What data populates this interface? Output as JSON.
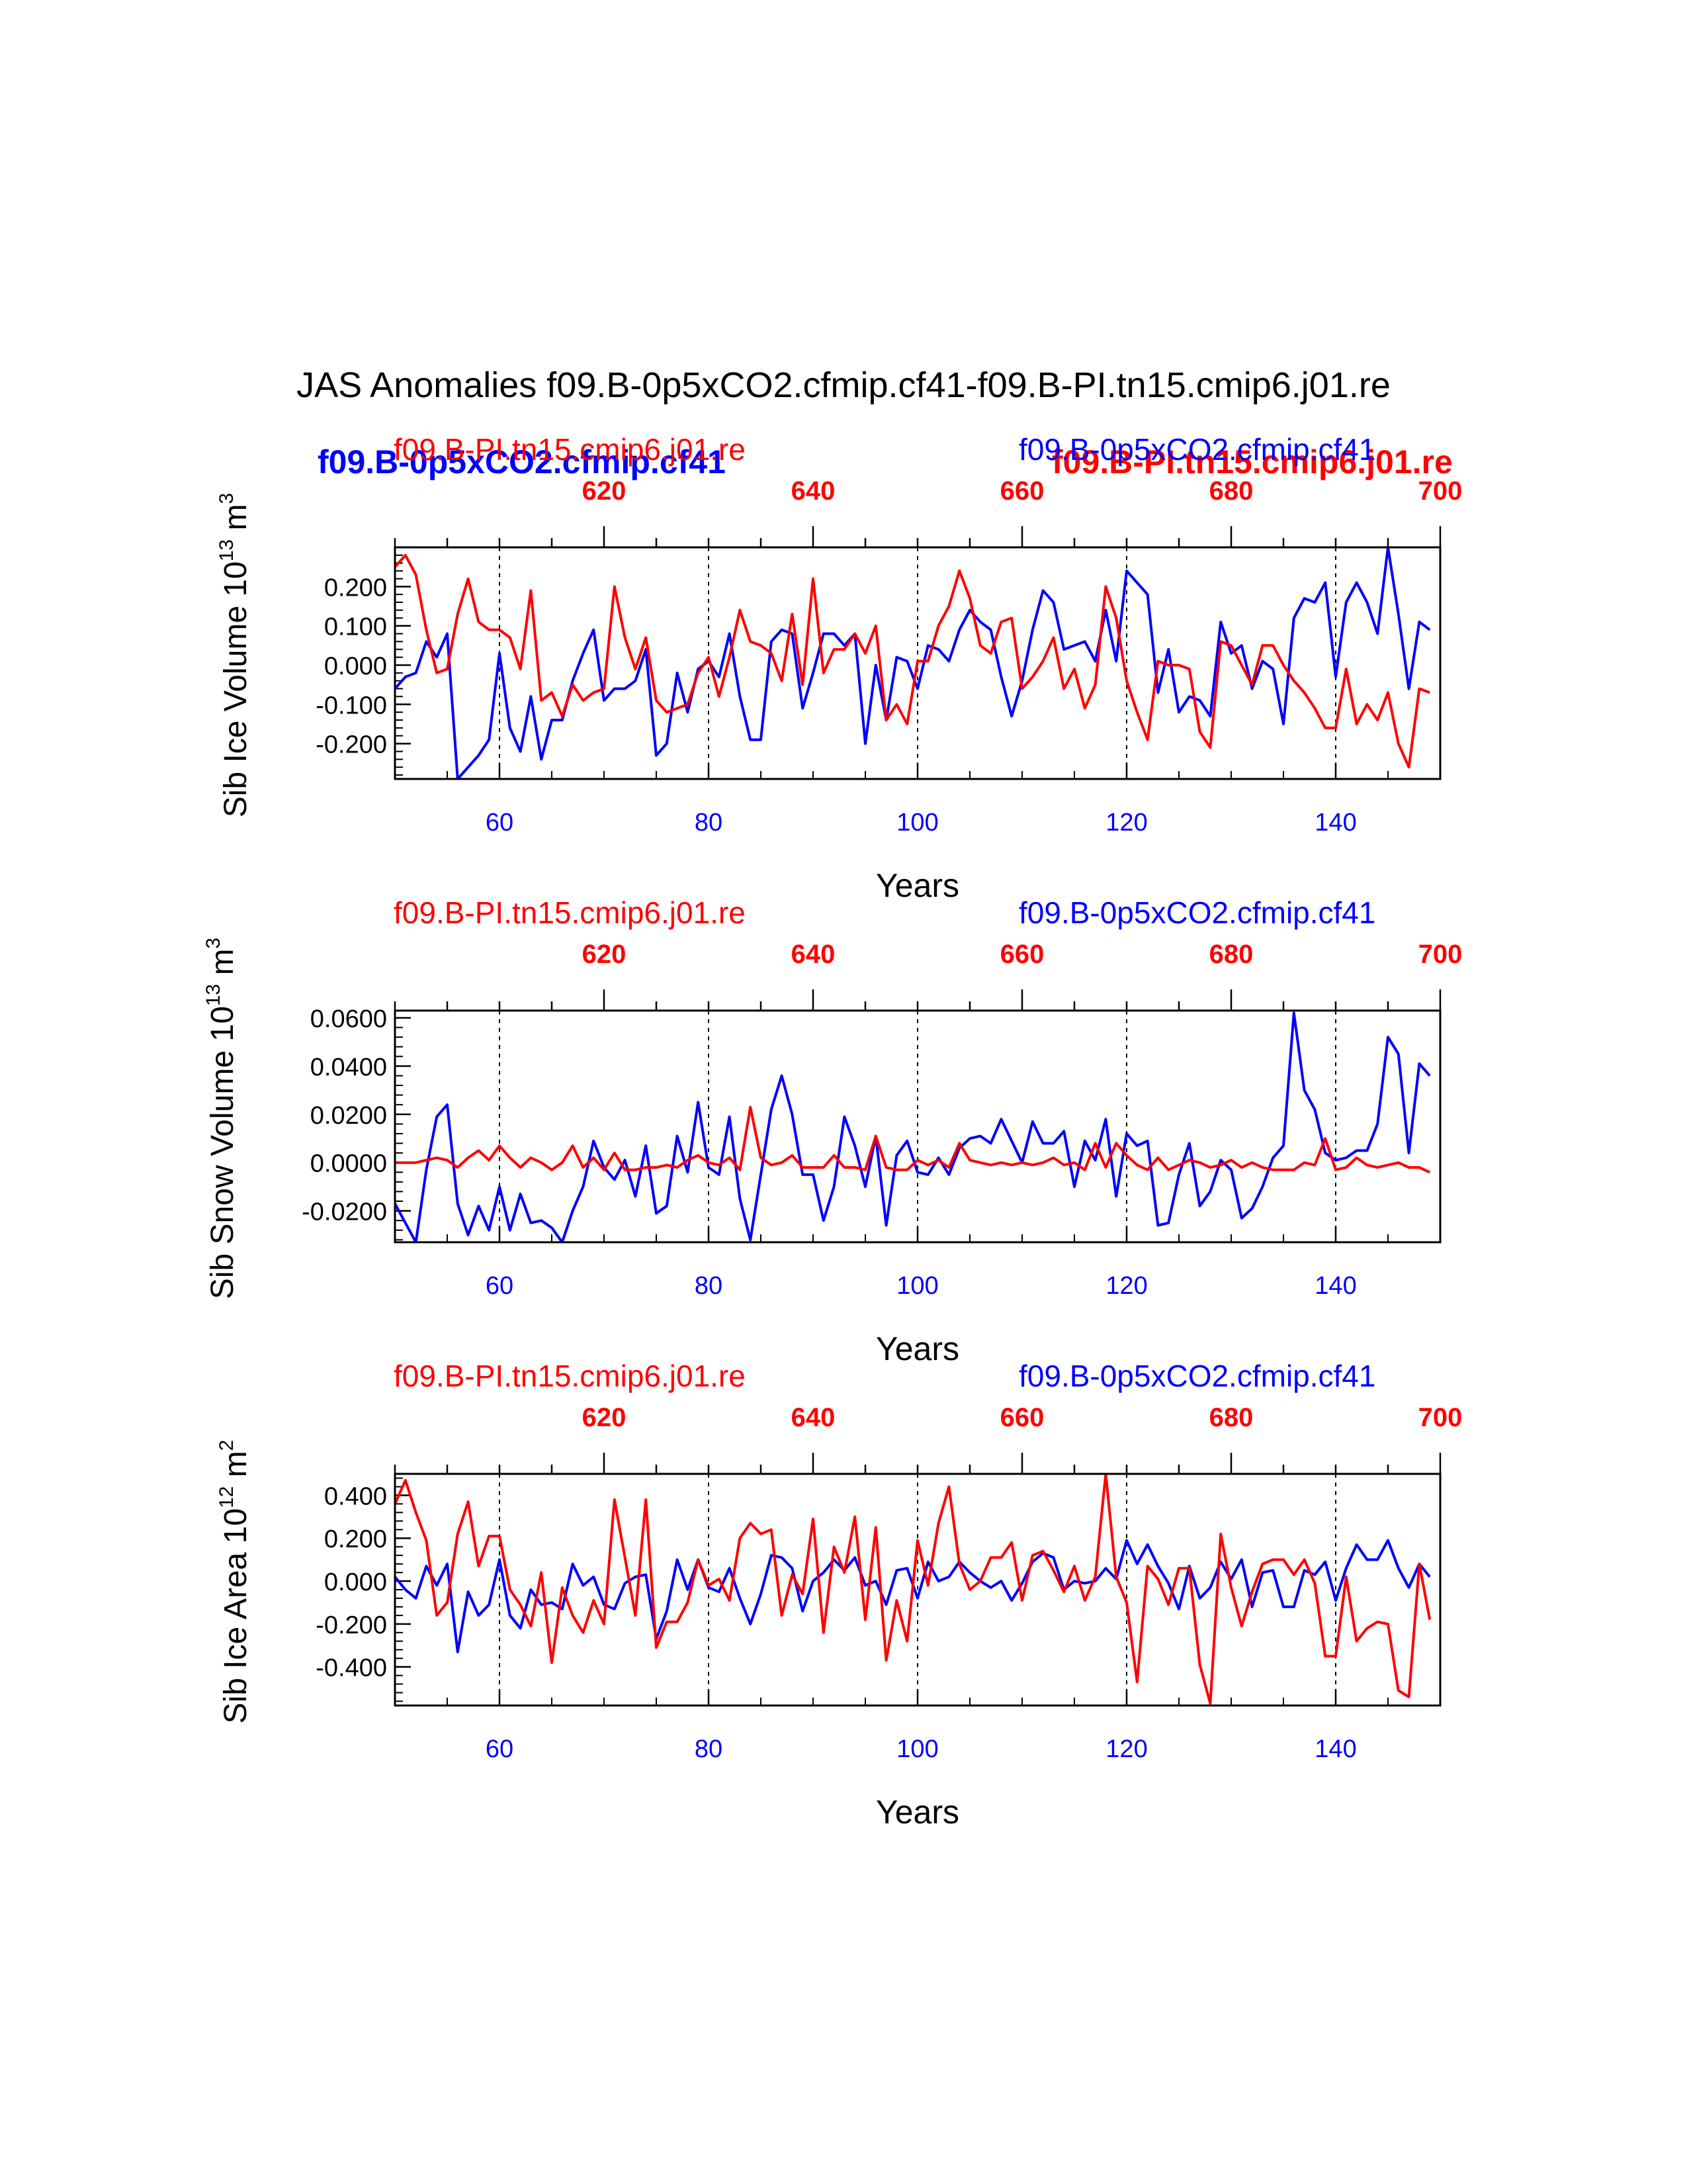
{
  "title": "JAS Anomalies f09.B-0p5xCO2.cfmip.cf41-f09.B-PI.tn15.cmip6.j01.re",
  "bold_legend": {
    "blue": "f09.B-0p5xCO2.cfmip.cf41",
    "red": "f09.B-PI.tn15.cmip6.j01.re"
  },
  "colors": {
    "blue": "#0000ff",
    "red": "#ff0000",
    "axis": "#000000"
  },
  "chart_data": [
    {
      "type": "line",
      "id": "ice-volume",
      "ylabel": "Sib Ice Volume 10",
      "ylabel_exp": "13",
      "ylabel_unit": " m",
      "ylabel_unit_exp": "3",
      "xlabel": "Years",
      "top_left_label": "f09.B-PI.tn15.cmip6.j01.re",
      "top_right_label": "f09.B-0p5xCO2.cfmip.cf41",
      "xlim": [
        50,
        150
      ],
      "top_xlim": [
        600,
        700
      ],
      "ylim": [
        -0.29,
        0.3
      ],
      "yticks": [
        -0.2,
        -0.1,
        0.0,
        0.1,
        0.2
      ],
      "ytick_labels": [
        "-0.200",
        "-0.100",
        "0.000",
        "0.100",
        "0.200"
      ],
      "xticks": [
        60,
        80,
        100,
        120,
        140
      ],
      "xtick_labels": [
        "60",
        "80",
        "100",
        "120",
        "140"
      ],
      "top_xticks": [
        620,
        640,
        660,
        680,
        700
      ],
      "top_xtick_labels": [
        "620",
        "640",
        "660",
        "680",
        "700"
      ],
      "dashed_x": [
        60,
        80,
        100,
        120,
        140
      ],
      "x_start": 50,
      "series": [
        {
          "name": "f09.B-0p5xCO2.cfmip.cf41",
          "color": "blue",
          "values": [
            -0.06,
            -0.03,
            -0.02,
            0.06,
            0.02,
            0.08,
            -0.29,
            -0.26,
            -0.23,
            -0.19,
            0.03,
            -0.16,
            -0.22,
            -0.08,
            -0.24,
            -0.14,
            -0.14,
            -0.04,
            0.03,
            0.09,
            -0.09,
            -0.06,
            -0.06,
            -0.04,
            0.04,
            -0.23,
            -0.2,
            -0.02,
            -0.12,
            -0.01,
            0.01,
            -0.03,
            0.08,
            -0.08,
            -0.19,
            -0.19,
            0.06,
            0.09,
            0.08,
            -0.11,
            -0.02,
            0.08,
            0.08,
            0.05,
            0.08,
            -0.2,
            0.0,
            -0.14,
            0.02,
            0.01,
            -0.06,
            0.05,
            0.04,
            0.01,
            0.09,
            0.14,
            0.11,
            0.09,
            -0.03,
            -0.13,
            -0.04,
            0.09,
            0.19,
            0.16,
            0.04,
            0.05,
            0.06,
            0.01,
            0.14,
            0.01,
            0.24,
            0.21,
            0.18,
            -0.07,
            0.04,
            -0.12,
            -0.08,
            -0.09,
            -0.13,
            0.11,
            0.03,
            0.05,
            -0.06,
            0.01,
            -0.01,
            -0.15,
            0.12,
            0.17,
            0.16,
            0.21,
            -0.03,
            0.16,
            0.21,
            0.16,
            0.08,
            0.3,
            0.13,
            -0.06,
            0.11,
            0.09
          ]
        },
        {
          "name": "f09.B-PI.tn15.cmip6.j01.re",
          "color": "red",
          "values": [
            0.25,
            0.28,
            0.23,
            0.09,
            -0.02,
            -0.01,
            0.13,
            0.22,
            0.11,
            0.09,
            0.09,
            0.07,
            -0.01,
            0.19,
            -0.09,
            -0.07,
            -0.13,
            -0.05,
            -0.09,
            -0.07,
            -0.06,
            0.2,
            0.07,
            -0.01,
            0.07,
            -0.09,
            -0.12,
            -0.11,
            -0.1,
            -0.02,
            0.02,
            -0.08,
            0.02,
            0.14,
            0.06,
            0.05,
            0.03,
            -0.04,
            0.13,
            -0.05,
            0.22,
            -0.02,
            0.04,
            0.04,
            0.08,
            0.03,
            0.1,
            -0.14,
            -0.1,
            -0.15,
            0.01,
            0.01,
            0.1,
            0.15,
            0.24,
            0.17,
            0.05,
            0.03,
            0.11,
            0.12,
            -0.06,
            -0.03,
            0.01,
            0.07,
            -0.06,
            -0.01,
            -0.11,
            -0.05,
            0.2,
            0.12,
            -0.04,
            -0.12,
            -0.19,
            0.01,
            0.0,
            0.0,
            -0.01,
            -0.17,
            -0.21,
            0.06,
            0.05,
            0.0,
            -0.05,
            0.05,
            0.05,
            0.0,
            -0.04,
            -0.07,
            -0.11,
            -0.16,
            -0.16,
            -0.01,
            -0.15,
            -0.1,
            -0.14,
            -0.07,
            -0.2,
            -0.26,
            -0.06,
            -0.07
          ]
        }
      ]
    },
    {
      "type": "line",
      "id": "snow-volume",
      "ylabel": "Sib Snow Volume 10",
      "ylabel_exp": "13",
      "ylabel_unit": " m",
      "ylabel_unit_exp": "3",
      "xlabel": "Years",
      "top_left_label": "f09.B-PI.tn15.cmip6.j01.re",
      "top_right_label": "f09.B-0p5xCO2.cfmip.cf41",
      "xlim": [
        50,
        150
      ],
      "top_xlim": [
        600,
        700
      ],
      "ylim": [
        -0.033,
        0.063
      ],
      "yticks": [
        -0.02,
        0.0,
        0.02,
        0.04,
        0.06
      ],
      "ytick_labels": [
        "-0.0200",
        "0.0000",
        "0.0200",
        "0.0400",
        "0.0600"
      ],
      "xticks": [
        60,
        80,
        100,
        120,
        140
      ],
      "xtick_labels": [
        "60",
        "80",
        "100",
        "120",
        "140"
      ],
      "top_xticks": [
        620,
        640,
        660,
        680,
        700
      ],
      "top_xtick_labels": [
        "620",
        "640",
        "660",
        "680",
        "700"
      ],
      "dashed_x": [
        60,
        80,
        100,
        120,
        140
      ],
      "x_start": 50,
      "series": [
        {
          "name": "f09.B-0p5xCO2.cfmip.cf41",
          "color": "blue",
          "values": [
            -0.017,
            -0.025,
            -0.033,
            -0.003,
            0.019,
            0.024,
            -0.017,
            -0.03,
            -0.018,
            -0.028,
            -0.01,
            -0.028,
            -0.013,
            -0.025,
            -0.024,
            -0.027,
            -0.033,
            -0.02,
            -0.01,
            0.009,
            -0.002,
            -0.007,
            0.001,
            -0.014,
            0.007,
            -0.021,
            -0.018,
            0.011,
            -0.004,
            0.025,
            -0.002,
            -0.005,
            0.019,
            -0.015,
            -0.032,
            -0.005,
            0.022,
            0.036,
            0.02,
            -0.005,
            -0.005,
            -0.024,
            -0.01,
            0.019,
            0.007,
            -0.01,
            0.011,
            -0.026,
            0.003,
            0.009,
            -0.004,
            -0.005,
            0.002,
            -0.005,
            0.006,
            0.01,
            0.011,
            0.008,
            0.018,
            0.009,
            0.0,
            0.017,
            0.008,
            0.008,
            0.013,
            -0.01,
            0.009,
            0.001,
            0.018,
            -0.014,
            0.012,
            0.007,
            0.009,
            -0.026,
            -0.025,
            -0.005,
            0.008,
            -0.018,
            -0.012,
            0.001,
            -0.003,
            -0.023,
            -0.019,
            -0.01,
            0.002,
            0.007,
            0.062,
            0.03,
            0.022,
            0.004,
            0.001,
            0.002,
            0.005,
            0.005,
            0.016,
            0.052,
            0.045,
            0.004,
            0.041,
            0.036
          ]
        },
        {
          "name": "f09.B-PI.tn15.cmip6.j01.re",
          "color": "red",
          "values": [
            0.0,
            0.0,
            0.0,
            0.001,
            0.002,
            0.001,
            -0.002,
            0.002,
            0.005,
            0.001,
            0.007,
            0.002,
            -0.002,
            0.002,
            0.0,
            -0.003,
            0.0,
            0.007,
            -0.002,
            0.002,
            -0.003,
            0.004,
            -0.003,
            -0.003,
            -0.002,
            -0.002,
            -0.001,
            -0.002,
            0.001,
            0.003,
            0.0,
            -0.001,
            0.002,
            -0.003,
            0.023,
            0.002,
            -0.001,
            0.0,
            0.003,
            -0.002,
            -0.002,
            -0.002,
            0.003,
            -0.002,
            -0.002,
            -0.003,
            0.011,
            -0.002,
            -0.003,
            -0.003,
            0.001,
            -0.001,
            0.001,
            -0.002,
            0.008,
            0.001,
            0.0,
            -0.001,
            0.0,
            -0.001,
            0.0,
            -0.001,
            0.0,
            0.002,
            -0.001,
            0.0,
            -0.003,
            0.008,
            -0.002,
            0.008,
            0.003,
            -0.001,
            -0.003,
            0.002,
            -0.003,
            -0.001,
            0.001,
            0.0,
            -0.002,
            -0.001,
            0.001,
            -0.002,
            0.0,
            -0.002,
            -0.003,
            -0.003,
            -0.003,
            0.0,
            -0.001,
            0.01,
            -0.003,
            -0.002,
            0.002,
            -0.001,
            -0.002,
            -0.001,
            0.0,
            -0.002,
            -0.002,
            -0.004
          ]
        }
      ]
    },
    {
      "type": "line",
      "id": "ice-area",
      "ylabel": "Sib Ice Area 10",
      "ylabel_exp": "12",
      "ylabel_unit": " m",
      "ylabel_unit_exp": "2",
      "xlabel": "Years",
      "top_left_label": "f09.B-PI.tn15.cmip6.j01.re",
      "top_right_label": "f09.B-0p5xCO2.cfmip.cf41",
      "xlim": [
        50,
        150
      ],
      "top_xlim": [
        600,
        700
      ],
      "ylim": [
        -0.58,
        0.5
      ],
      "yticks": [
        -0.4,
        -0.2,
        0.0,
        0.2,
        0.4
      ],
      "ytick_labels": [
        "-0.400",
        "-0.200",
        "0.000",
        "0.200",
        "0.400"
      ],
      "xticks": [
        60,
        80,
        100,
        120,
        140
      ],
      "xtick_labels": [
        "60",
        "80",
        "100",
        "120",
        "140"
      ],
      "top_xticks": [
        620,
        640,
        660,
        680,
        700
      ],
      "top_xtick_labels": [
        "620",
        "640",
        "660",
        "680",
        "700"
      ],
      "dashed_x": [
        60,
        80,
        100,
        120,
        140
      ],
      "x_start": 50,
      "series": [
        {
          "name": "f09.B-0p5xCO2.cfmip.cf41",
          "color": "blue",
          "values": [
            0.02,
            -0.04,
            -0.08,
            0.07,
            -0.02,
            0.08,
            -0.33,
            -0.05,
            -0.16,
            -0.11,
            0.1,
            -0.16,
            -0.22,
            -0.04,
            -0.11,
            -0.1,
            -0.13,
            0.08,
            -0.02,
            0.02,
            -0.11,
            -0.13,
            -0.01,
            0.02,
            0.03,
            -0.27,
            -0.14,
            0.1,
            -0.04,
            0.1,
            -0.03,
            -0.05,
            0.06,
            -0.08,
            -0.2,
            -0.06,
            0.12,
            0.11,
            0.06,
            -0.14,
            0.0,
            0.04,
            0.1,
            0.05,
            0.11,
            -0.02,
            0.0,
            -0.11,
            0.05,
            0.06,
            -0.08,
            0.09,
            0.0,
            0.02,
            0.09,
            0.04,
            0.0,
            -0.03,
            0.0,
            -0.09,
            -0.01,
            0.09,
            0.13,
            0.11,
            -0.04,
            0.0,
            -0.01,
            0.0,
            0.06,
            0.01,
            0.19,
            0.08,
            0.17,
            0.07,
            -0.01,
            -0.13,
            0.07,
            -0.08,
            -0.03,
            0.09,
            0.01,
            0.1,
            -0.12,
            0.04,
            0.05,
            -0.12,
            -0.12,
            0.05,
            0.03,
            0.09,
            -0.09,
            0.06,
            0.17,
            0.1,
            0.1,
            0.19,
            0.06,
            -0.03,
            0.08,
            0.02
          ]
        },
        {
          "name": "f09.B-PI.tn15.cmip6.j01.re",
          "color": "red",
          "values": [
            0.36,
            0.47,
            0.32,
            0.19,
            -0.16,
            -0.1,
            0.22,
            0.37,
            0.07,
            0.21,
            0.21,
            -0.04,
            -0.11,
            -0.21,
            0.04,
            -0.38,
            -0.03,
            -0.16,
            -0.24,
            -0.09,
            -0.2,
            0.38,
            0.11,
            -0.16,
            0.38,
            -0.31,
            -0.19,
            -0.19,
            -0.1,
            0.1,
            -0.02,
            0.01,
            -0.09,
            0.2,
            0.27,
            0.22,
            0.24,
            -0.16,
            0.03,
            -0.06,
            0.29,
            -0.24,
            0.16,
            0.04,
            0.3,
            -0.18,
            0.25,
            -0.37,
            -0.09,
            -0.28,
            0.19,
            -0.02,
            0.27,
            0.44,
            0.08,
            -0.04,
            0.0,
            0.11,
            0.11,
            0.18,
            -0.09,
            0.12,
            0.14,
            0.05,
            -0.05,
            0.07,
            -0.09,
            0.02,
            0.5,
            0.02,
            -0.1,
            -0.47,
            0.07,
            0.01,
            -0.11,
            0.06,
            0.06,
            -0.39,
            -0.57,
            0.22,
            -0.03,
            -0.21,
            -0.05,
            0.08,
            0.1,
            0.1,
            0.03,
            0.1,
            -0.01,
            -0.35,
            -0.35,
            0.02,
            -0.28,
            -0.22,
            -0.19,
            -0.2,
            -0.51,
            -0.54,
            0.08,
            -0.18
          ]
        }
      ]
    }
  ]
}
